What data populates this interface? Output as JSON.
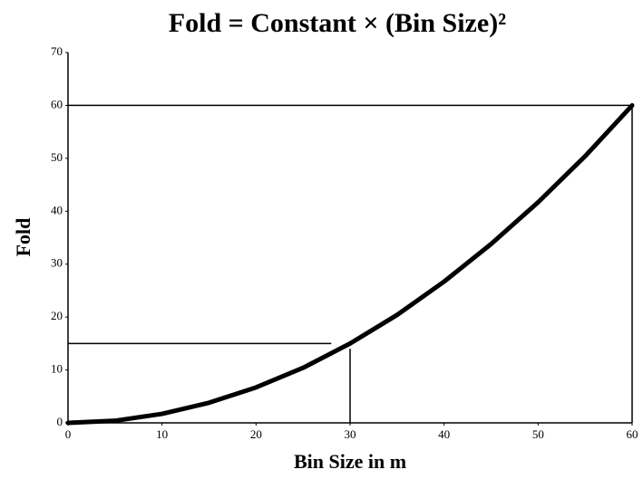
{
  "chart_data": {
    "type": "line",
    "title": "Fold = Constant × (Bin Size)²",
    "x_label": "Bin Size in m",
    "y_label": "Fold",
    "x": [
      0,
      5,
      10,
      15,
      20,
      25,
      30,
      35,
      40,
      45,
      50,
      55,
      60
    ],
    "series": [
      {
        "color": "#000000",
        "values": [
          0,
          0.4,
          1.7,
          3.8,
          6.7,
          10.4,
          15,
          20.4,
          26.7,
          33.8,
          41.7,
          50.4,
          60
        ]
      }
    ],
    "reference_lines": [
      {
        "x": [
          0,
          60
        ],
        "y": [
          60,
          60
        ]
      },
      {
        "x": [
          60,
          60
        ],
        "y": [
          0,
          60
        ]
      },
      {
        "x": [
          0,
          28
        ],
        "y": [
          15,
          15
        ]
      },
      {
        "x": [
          30,
          30
        ],
        "y": [
          0,
          14
        ]
      }
    ],
    "xlim": [
      0,
      60
    ],
    "ylim": [
      0,
      70
    ],
    "xticks": [
      0,
      10,
      20,
      30,
      40,
      50,
      60
    ],
    "yticks": [
      0,
      10,
      20,
      30,
      40,
      50,
      60,
      70
    ]
  }
}
